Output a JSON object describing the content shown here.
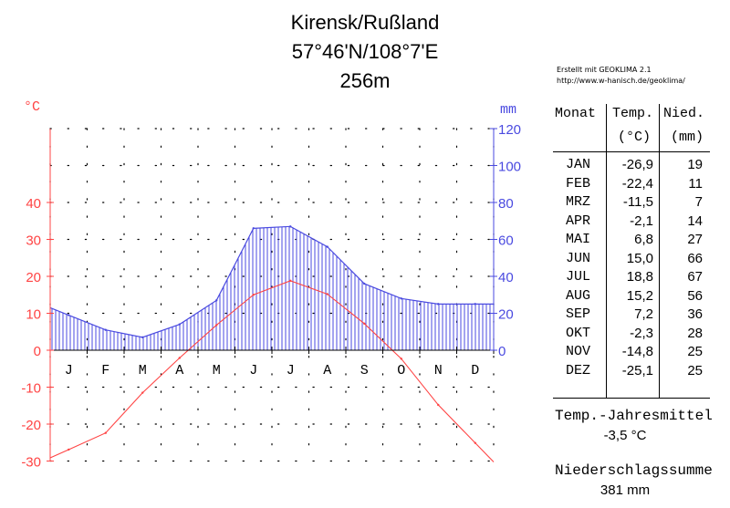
{
  "title": {
    "station": "Kirensk/Rußland",
    "coords": "57°46'N/108°7'E",
    "elevation": "256m"
  },
  "credit": {
    "line1": "Erstellt mit GEOKLIMA 2.1",
    "line2": "http://www.w-hanisch.de/geoklima/"
  },
  "table": {
    "headers": {
      "month": "Monat",
      "temp": "Temp.",
      "temp_unit": "(°C)",
      "precip": "Nied.",
      "precip_unit": "(mm)"
    },
    "rows": [
      {
        "month": "JAN",
        "temp": "-26,9",
        "precip": "19"
      },
      {
        "month": "FEB",
        "temp": "-22,4",
        "precip": "11"
      },
      {
        "month": "MRZ",
        "temp": "-11,5",
        "precip": "7"
      },
      {
        "month": "APR",
        "temp": "-2,1",
        "precip": "14"
      },
      {
        "month": "MAI",
        "temp": "6,8",
        "precip": "27"
      },
      {
        "month": "JUN",
        "temp": "15,0",
        "precip": "66"
      },
      {
        "month": "JUL",
        "temp": "18,8",
        "precip": "67"
      },
      {
        "month": "AUG",
        "temp": "15,2",
        "precip": "56"
      },
      {
        "month": "SEP",
        "temp": "7,2",
        "precip": "36"
      },
      {
        "month": "OKT",
        "temp": "-2,3",
        "precip": "28"
      },
      {
        "month": "NOV",
        "temp": "-14,8",
        "precip": "25"
      },
      {
        "month": "DEZ",
        "temp": "-25,1",
        "precip": "25"
      }
    ]
  },
  "summary": {
    "annual_temp_label": "Temp.-Jahresmittel",
    "annual_temp_value": "-3,5 °C",
    "annual_precip_label": "Niederschlagssumme",
    "annual_precip_value": "381 mm"
  },
  "chart_data": {
    "type": "line",
    "categories": [
      "J",
      "F",
      "M",
      "A",
      "M",
      "J",
      "J",
      "A",
      "S",
      "O",
      "N",
      "D"
    ],
    "series": [
      {
        "name": "",
        "axis": "left",
        "unit": "°C",
        "color": "#ff4444",
        "values": [
          -26.9,
          -22.4,
          -11.5,
          -2.1,
          6.8,
          15.0,
          18.8,
          15.2,
          7.2,
          -2.3,
          -14.8,
          -25.1
        ]
      },
      {
        "name": "",
        "axis": "right",
        "unit": "mm",
        "color": "#4a4ae0",
        "values": [
          19,
          11,
          7,
          14,
          27,
          66,
          67,
          56,
          36,
          28,
          25,
          25
        ]
      }
    ],
    "left_axis": {
      "label": "°C",
      "ticks": [
        "-30",
        "-20",
        "-10",
        "0",
        "10",
        "20",
        "30",
        "40"
      ],
      "range": [
        -30,
        60
      ],
      "color": "#ff4444"
    },
    "right_axis": {
      "label": "mm",
      "ticks": [
        "0",
        "20",
        "40",
        "60",
        "80",
        "100",
        "120"
      ],
      "range": [
        0,
        120
      ],
      "color": "#4a4ae0"
    },
    "grid": true
  }
}
